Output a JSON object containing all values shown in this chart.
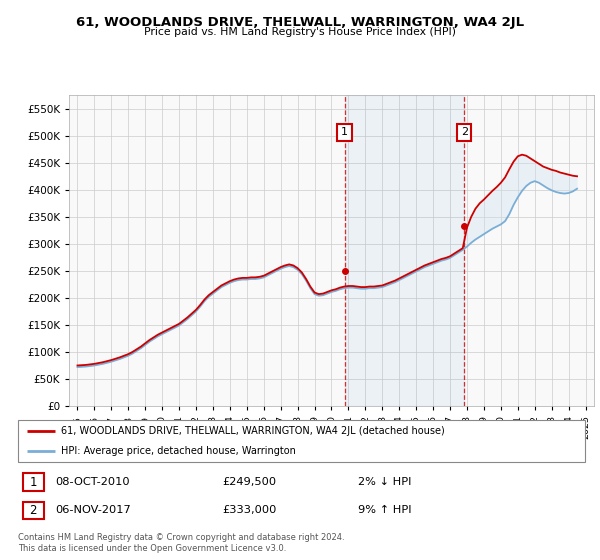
{
  "title": "61, WOODLANDS DRIVE, THELWALL, WARRINGTON, WA4 2JL",
  "subtitle": "Price paid vs. HM Land Registry's House Price Index (HPI)",
  "footnote": "Contains HM Land Registry data © Crown copyright and database right 2024.\nThis data is licensed under the Open Government Licence v3.0.",
  "legend_line1": "61, WOODLANDS DRIVE, THELWALL, WARRINGTON, WA4 2JL (detached house)",
  "legend_line2": "HPI: Average price, detached house, Warrington",
  "marker1_date": "08-OCT-2010",
  "marker1_price": "£249,500",
  "marker1_hpi": "2% ↓ HPI",
  "marker2_date": "06-NOV-2017",
  "marker2_price": "£333,000",
  "marker2_hpi": "9% ↑ HPI",
  "marker1_x": 2010.77,
  "marker1_y": 249500,
  "marker2_x": 2017.84,
  "marker2_y": 333000,
  "ylim": [
    0,
    575000
  ],
  "xlim": [
    1994.5,
    2025.5
  ],
  "yticks": [
    0,
    50000,
    100000,
    150000,
    200000,
    250000,
    300000,
    350000,
    400000,
    450000,
    500000,
    550000
  ],
  "xticks": [
    1995,
    1996,
    1997,
    1998,
    1999,
    2000,
    2001,
    2002,
    2003,
    2004,
    2005,
    2006,
    2007,
    2008,
    2009,
    2010,
    2011,
    2012,
    2013,
    2014,
    2015,
    2016,
    2017,
    2018,
    2019,
    2020,
    2021,
    2022,
    2023,
    2024,
    2025
  ],
  "red_color": "#cc0000",
  "blue_color": "#7aaed6",
  "shade_color": "#cce0f0",
  "grid_color": "#cccccc",
  "hpi_x": [
    1995.0,
    1995.25,
    1995.5,
    1995.75,
    1996.0,
    1996.25,
    1996.5,
    1996.75,
    1997.0,
    1997.25,
    1997.5,
    1997.75,
    1998.0,
    1998.25,
    1998.5,
    1998.75,
    1999.0,
    1999.25,
    1999.5,
    1999.75,
    2000.0,
    2000.25,
    2000.5,
    2000.75,
    2001.0,
    2001.25,
    2001.5,
    2001.75,
    2002.0,
    2002.25,
    2002.5,
    2002.75,
    2003.0,
    2003.25,
    2003.5,
    2003.75,
    2004.0,
    2004.25,
    2004.5,
    2004.75,
    2005.0,
    2005.25,
    2005.5,
    2005.75,
    2006.0,
    2006.25,
    2006.5,
    2006.75,
    2007.0,
    2007.25,
    2007.5,
    2007.75,
    2008.0,
    2008.25,
    2008.5,
    2008.75,
    2009.0,
    2009.25,
    2009.5,
    2009.75,
    2010.0,
    2010.25,
    2010.5,
    2010.75,
    2011.0,
    2011.25,
    2011.5,
    2011.75,
    2012.0,
    2012.25,
    2012.5,
    2012.75,
    2013.0,
    2013.25,
    2013.5,
    2013.75,
    2014.0,
    2014.25,
    2014.5,
    2014.75,
    2015.0,
    2015.25,
    2015.5,
    2015.75,
    2016.0,
    2016.25,
    2016.5,
    2016.75,
    2017.0,
    2017.25,
    2017.5,
    2017.75,
    2018.0,
    2018.25,
    2018.5,
    2018.75,
    2019.0,
    2019.25,
    2019.5,
    2019.75,
    2020.0,
    2020.25,
    2020.5,
    2020.75,
    2021.0,
    2021.25,
    2021.5,
    2021.75,
    2022.0,
    2022.25,
    2022.5,
    2022.75,
    2023.0,
    2023.25,
    2023.5,
    2023.75,
    2024.0,
    2024.25,
    2024.5
  ],
  "hpi_y": [
    72000,
    72500,
    73000,
    74000,
    75000,
    76500,
    78000,
    80000,
    82000,
    84500,
    87000,
    90000,
    93000,
    97000,
    102000,
    107000,
    113000,
    119000,
    124000,
    129000,
    133000,
    137000,
    141000,
    145000,
    149000,
    155000,
    161000,
    168000,
    175000,
    184000,
    194000,
    202000,
    208000,
    214000,
    220000,
    224000,
    228000,
    231000,
    233000,
    234000,
    234000,
    235000,
    235000,
    236000,
    238000,
    242000,
    246000,
    250000,
    254000,
    257000,
    259000,
    257000,
    252000,
    244000,
    232000,
    218000,
    207000,
    204000,
    205000,
    208000,
    211000,
    213000,
    216000,
    218000,
    219000,
    219000,
    218000,
    217000,
    217000,
    218000,
    218000,
    219000,
    220000,
    223000,
    226000,
    229000,
    233000,
    237000,
    241000,
    245000,
    249000,
    253000,
    257000,
    260000,
    263000,
    266000,
    269000,
    271000,
    274000,
    279000,
    284000,
    289000,
    295000,
    302000,
    308000,
    313000,
    318000,
    323000,
    328000,
    332000,
    336000,
    342000,
    355000,
    372000,
    386000,
    398000,
    407000,
    413000,
    416000,
    413000,
    408000,
    403000,
    399000,
    396000,
    394000,
    393000,
    394000,
    397000,
    402000
  ],
  "red_y": [
    75000,
    75500,
    76000,
    77000,
    78000,
    79500,
    81000,
    83000,
    85000,
    87500,
    90000,
    93000,
    96000,
    100000,
    105000,
    110000,
    116000,
    122000,
    127000,
    132000,
    136000,
    140000,
    144000,
    148000,
    152000,
    158000,
    164000,
    171000,
    178000,
    187000,
    197000,
    205000,
    211000,
    217000,
    223000,
    227000,
    231000,
    234000,
    236000,
    237000,
    237000,
    238000,
    238000,
    239000,
    241000,
    245000,
    249000,
    253000,
    257000,
    260000,
    262000,
    260000,
    255000,
    247000,
    235000,
    221000,
    210000,
    207000,
    208000,
    211000,
    214000,
    216000,
    219000,
    221000,
    222000,
    222000,
    221000,
    220000,
    220000,
    221000,
    221000,
    222000,
    223000,
    226000,
    229000,
    232000,
    236000,
    240000,
    244000,
    248000,
    252000,
    256000,
    260000,
    263000,
    266000,
    269000,
    272000,
    274000,
    277000,
    282000,
    287000,
    292000,
    330000,
    350000,
    365000,
    375000,
    382000,
    390000,
    398000,
    405000,
    413000,
    423000,
    438000,
    452000,
    462000,
    465000,
    463000,
    458000,
    453000,
    448000,
    443000,
    440000,
    437000,
    435000,
    432000,
    430000,
    428000,
    426000,
    425000
  ]
}
